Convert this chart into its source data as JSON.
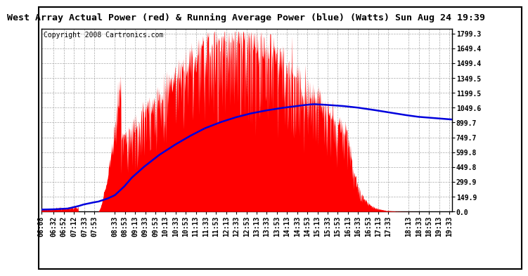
{
  "title": "West Array Actual Power (red) & Running Average Power (blue) (Watts) Sun Aug 24 19:39",
  "copyright": "Copyright 2008 Cartronics.com",
  "bg_color": "#ffffff",
  "plot_bg_color": "#ffffff",
  "grid_color": "#aaaaaa",
  "ytick_labels": [
    "0.0",
    "149.9",
    "299.9",
    "449.8",
    "599.8",
    "749.7",
    "899.7",
    "1049.6",
    "1199.5",
    "1349.5",
    "1499.4",
    "1649.4",
    "1799.3"
  ],
  "ytick_values": [
    0.0,
    149.9,
    299.9,
    449.8,
    599.8,
    749.7,
    899.7,
    1049.6,
    1199.5,
    1349.5,
    1499.4,
    1649.4,
    1799.3
  ],
  "ymax": 1849.0,
  "xtick_labels": [
    "06:08",
    "06:32",
    "06:52",
    "07:12",
    "07:33",
    "07:53",
    "08:33",
    "08:53",
    "09:13",
    "09:33",
    "09:53",
    "10:13",
    "10:33",
    "10:53",
    "11:13",
    "11:33",
    "11:53",
    "12:13",
    "12:33",
    "12:53",
    "13:13",
    "13:33",
    "13:53",
    "14:13",
    "14:33",
    "14:53",
    "15:13",
    "15:33",
    "15:53",
    "16:13",
    "16:33",
    "16:53",
    "17:13",
    "17:33",
    "18:13",
    "18:33",
    "18:53",
    "19:13",
    "19:33"
  ],
  "red_color": "#ff0000",
  "blue_color": "#0000dd",
  "title_fontsize": 9.5,
  "copyright_fontsize": 7,
  "tick_fontsize": 7,
  "border_color": "#000000"
}
